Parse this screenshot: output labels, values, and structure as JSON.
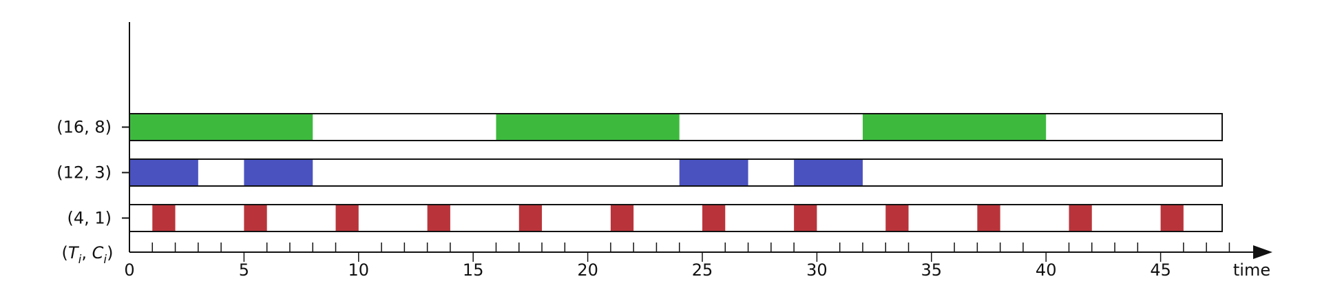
{
  "chart_data": {
    "type": "timeline",
    "xlabel": "time",
    "x_range": [
      0,
      48
    ],
    "x_ticks": [
      "0",
      "5",
      "10",
      "15",
      "20",
      "25",
      "30",
      "35",
      "40",
      "45"
    ],
    "y_axis_label": {
      "prefix": "(",
      "t": "T",
      "sep": ", ",
      "c": "C",
      "sub": "i",
      "suffix": ")"
    },
    "series": [
      {
        "name": "(16, 8)",
        "color": "#3dba3d",
        "intervals": [
          [
            0,
            8
          ],
          [
            16,
            24
          ],
          [
            32,
            40
          ]
        ]
      },
      {
        "name": "(12, 3)",
        "color": "#4a52c0",
        "intervals": [
          [
            0,
            3
          ],
          [
            5,
            8
          ],
          [
            24,
            27
          ],
          [
            29,
            32
          ]
        ]
      },
      {
        "name": "(4, 1)",
        "color": "#b9343a",
        "intervals": [
          [
            1,
            2
          ],
          [
            5,
            6
          ],
          [
            9,
            10
          ],
          [
            13,
            14
          ],
          [
            17,
            18
          ],
          [
            21,
            22
          ],
          [
            25,
            26
          ],
          [
            29,
            30
          ],
          [
            33,
            34
          ],
          [
            37,
            38
          ],
          [
            41,
            42
          ],
          [
            45,
            46
          ]
        ]
      }
    ]
  }
}
